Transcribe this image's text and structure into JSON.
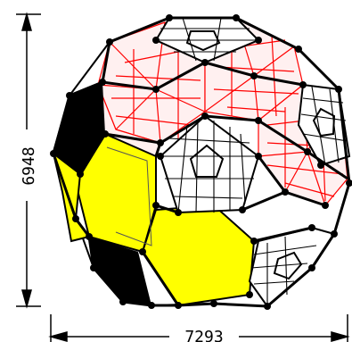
{
  "dimensions": {
    "height_label": "6948",
    "width_label": "7293"
  },
  "colors": {
    "hex_panel_yellow": "#ffff00",
    "hex_panel_red_lattice": "#ff0000",
    "panel_black": "#000000",
    "frame_black": "#000000",
    "background": "#ffffff"
  },
  "structure": {
    "type": "truncated-icosahedron-geodesic-dome",
    "node_marker": "black-dot"
  }
}
